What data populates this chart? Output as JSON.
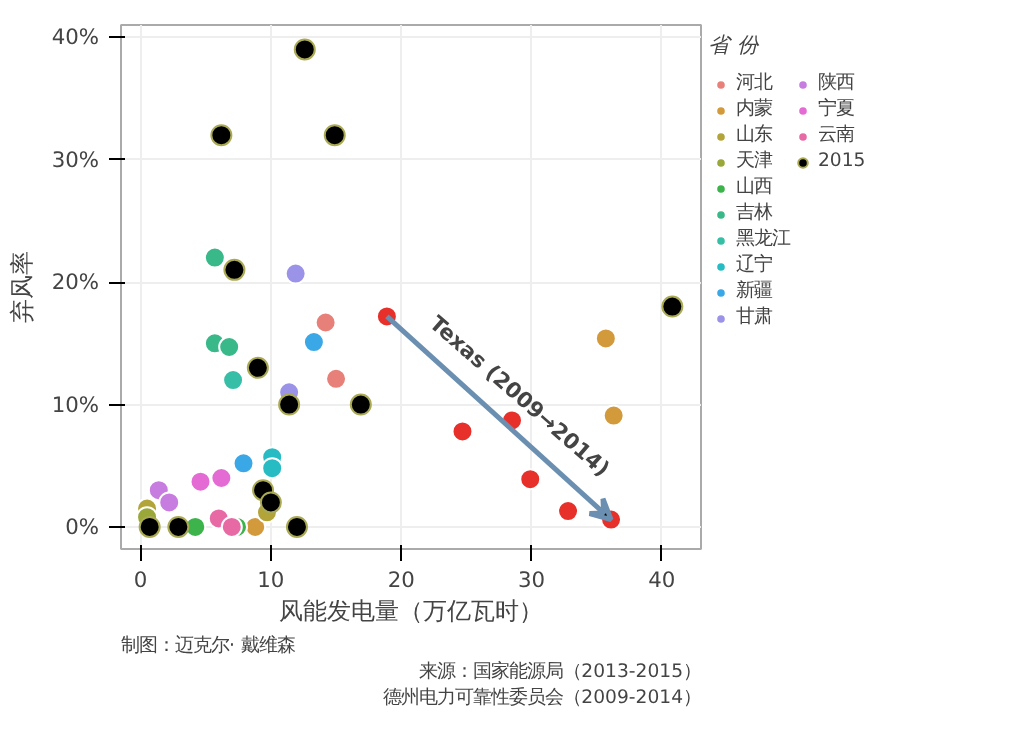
{
  "chart_data": {
    "type": "scatter",
    "xlabel": "风能发电量（万亿瓦时）",
    "ylabel": "弃风率",
    "legend_title": "省 份",
    "xlim": [
      -1.5,
      43
    ],
    "ylim": [
      -1.8,
      41
    ],
    "xticks": [
      0,
      10,
      20,
      30,
      40
    ],
    "yticks": [
      {
        "value": 0,
        "label": "0%"
      },
      {
        "value": 10,
        "label": "10%"
      },
      {
        "value": 20,
        "label": "20%"
      },
      {
        "value": 30,
        "label": "30%"
      },
      {
        "value": 40,
        "label": "40%"
      }
    ],
    "grid": true,
    "legend": "right",
    "marker": "circle",
    "series": [
      {
        "name": "河北",
        "color": "#e8807a",
        "x": [
          14.2,
          15.0
        ],
        "values": [
          16.7,
          12.1
        ]
      },
      {
        "name": "内蒙",
        "color": "#d39a3c",
        "x": [
          35.7,
          36.3,
          8.8
        ],
        "values": [
          15.4,
          9.1,
          0
        ]
      },
      {
        "name": "山东",
        "color": "#b3a43a",
        "x": [
          0.5,
          9.7
        ],
        "values": [
          1.5,
          1.2
        ]
      },
      {
        "name": "天津",
        "color": "#9aa83a",
        "x": [
          0.5
        ],
        "values": [
          0.8
        ]
      },
      {
        "name": "山西",
        "color": "#3cb44b",
        "x": [
          4.2,
          7.4
        ],
        "values": [
          0,
          0
        ]
      },
      {
        "name": "吉林",
        "color": "#39b889",
        "x": [
          5.7,
          5.7,
          6.8
        ],
        "values": [
          22,
          15,
          14.7
        ]
      },
      {
        "name": "黑龙江",
        "color": "#36bfa6",
        "x": [
          7.1
        ],
        "values": [
          12
        ]
      },
      {
        "name": "辽宁",
        "color": "#27bcc4",
        "x": [
          10.1,
          10.1
        ],
        "values": [
          5.7,
          4.8
        ]
      },
      {
        "name": "新疆",
        "color": "#3aa8e6",
        "x": [
          13.3,
          7.9
        ],
        "values": [
          15.1,
          5.2
        ]
      },
      {
        "name": "甘肃",
        "color": "#9b93e8",
        "x": [
          11.9,
          11.4
        ],
        "values": [
          20.7,
          11.0
        ]
      },
      {
        "name": "陕西",
        "color": "#c77ce0",
        "x": [
          1.4,
          2.2
        ],
        "values": [
          3.0,
          2.0
        ]
      },
      {
        "name": "宁夏",
        "color": "#e56bd4",
        "x": [
          4.6,
          6.2
        ],
        "values": [
          3.7,
          4.0
        ]
      },
      {
        "name": "云南",
        "color": "#e86aa5",
        "x": [
          6.0,
          7.0
        ],
        "values": [
          0.7,
          0
        ]
      },
      {
        "color": "#e8302b",
        "x": [
          18.9,
          24.7,
          28.5,
          29.9,
          32.8,
          36.1
        ],
        "values": [
          17.2,
          7.8,
          8.7,
          3.9,
          1.3,
          0.6
        ]
      },
      {
        "name": "2015",
        "color": "#000000",
        "x": [
          12.6,
          6.2,
          14.9,
          7.2,
          9.0,
          11.4,
          16.9,
          9.4,
          10.0,
          0.7,
          2.9,
          12.0,
          40.8
        ],
        "values": [
          39,
          32,
          32,
          21,
          13,
          10,
          10,
          3,
          2,
          0,
          0,
          0,
          18
        ]
      }
    ],
    "annotations": [
      "Texas (2009→2014)",
      "制图：迈克尔· 戴维森",
      "来源：国家能源局（2013-2015）",
      "德州电力可靠性委员会（2009-2014）"
    ]
  }
}
